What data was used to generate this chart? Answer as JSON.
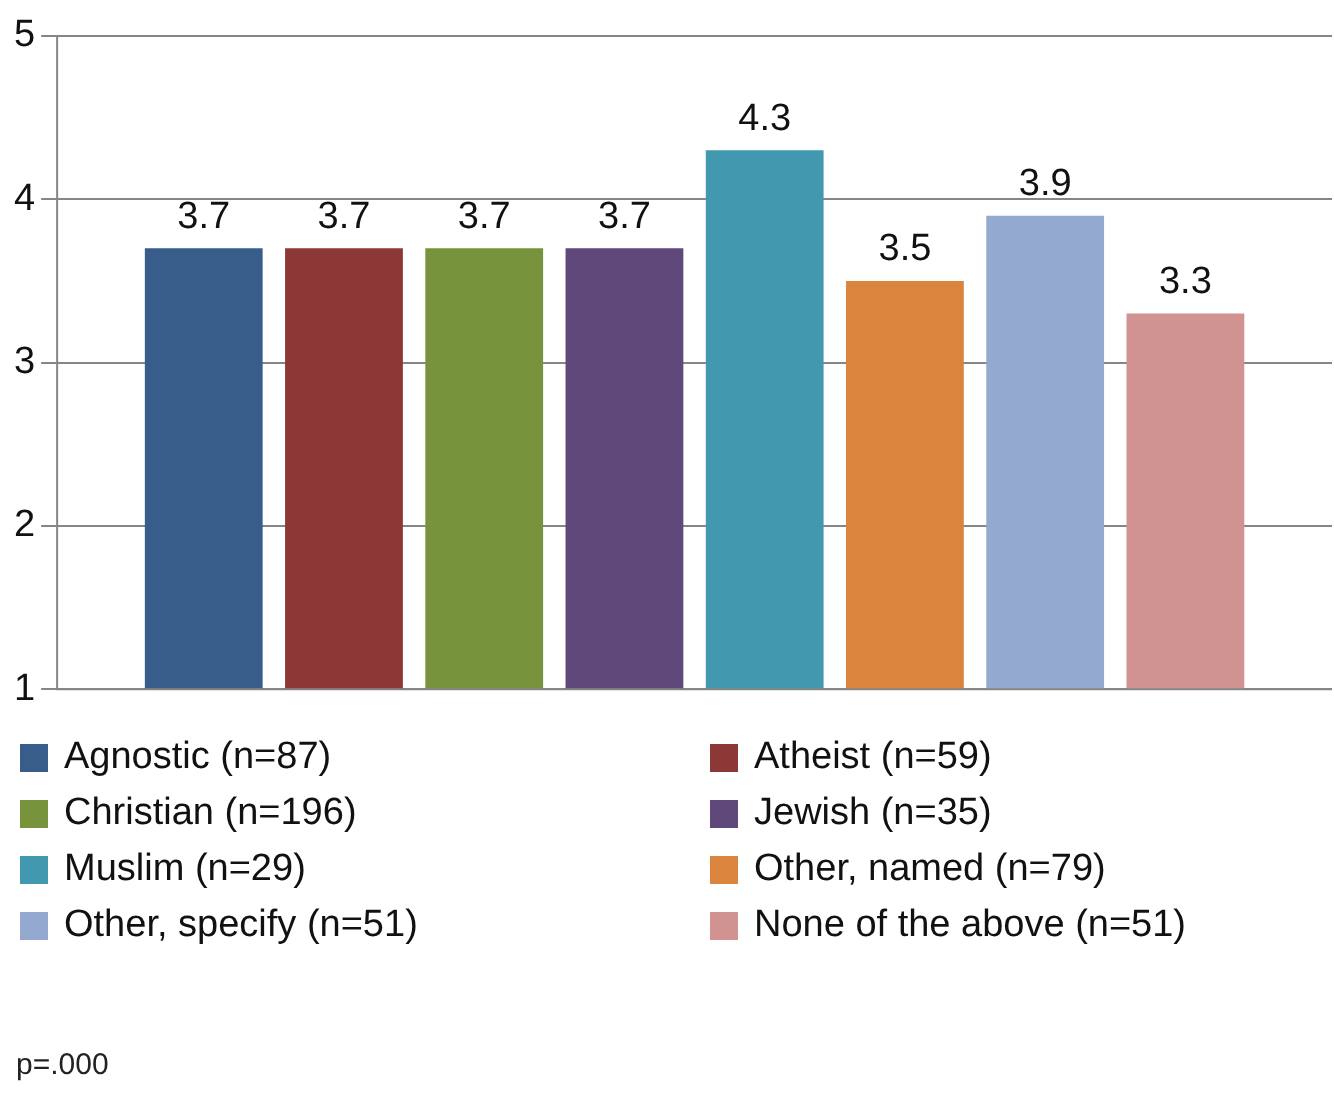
{
  "chart_data": {
    "type": "bar",
    "categories": [
      null
    ],
    "series": [
      {
        "name": "Agnostic (n=87)",
        "color": "#385d8a",
        "values": [
          3.7
        ]
      },
      {
        "name": "Atheist (n=59)",
        "color": "#8c3836",
        "values": [
          3.7
        ]
      },
      {
        "name": "Christian (n=196)",
        "color": "#77933c",
        "values": [
          3.7
        ]
      },
      {
        "name": "Jewish (n=35)",
        "color": "#5f497a",
        "values": [
          3.7
        ]
      },
      {
        "name": "Muslim (n=29)",
        "color": "#4198af",
        "values": [
          4.3
        ]
      },
      {
        "name": "Other, named (n=79)",
        "color": "#db843d",
        "values": [
          3.5
        ]
      },
      {
        "name": "Other, specify (n=51)",
        "color": "#93a9cf",
        "values": [
          3.9
        ]
      },
      {
        "name": "None of the above (n=51)",
        "color": "#d09392",
        "values": [
          3.3
        ]
      }
    ],
    "ylim": [
      1,
      5
    ],
    "yticks": [
      1,
      2,
      3,
      4,
      5
    ],
    "grid": "y",
    "data_labels": true,
    "legend": "bottom",
    "annotations": [
      "p=.000"
    ]
  }
}
